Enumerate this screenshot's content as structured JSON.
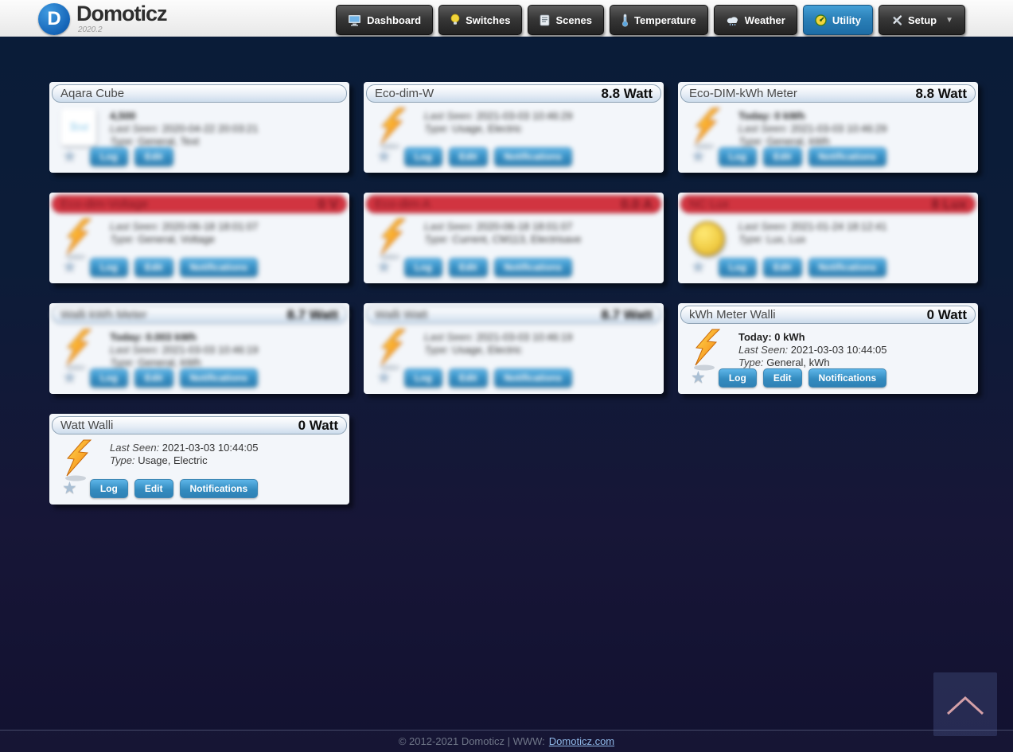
{
  "app": {
    "title": "Domoticz",
    "version": "2020.2"
  },
  "nav": {
    "items": [
      {
        "label": "Dashboard",
        "icon": "dashboard-icon",
        "active": false,
        "dropdown": false
      },
      {
        "label": "Switches",
        "icon": "lightbulb-icon",
        "active": false,
        "dropdown": false
      },
      {
        "label": "Scenes",
        "icon": "scenes-icon",
        "active": false,
        "dropdown": false
      },
      {
        "label": "Temperature",
        "icon": "thermometer-icon",
        "active": false,
        "dropdown": false
      },
      {
        "label": "Weather",
        "icon": "cloud-icon",
        "active": false,
        "dropdown": false
      },
      {
        "label": "Utility",
        "icon": "gauge-icon",
        "active": true,
        "dropdown": false
      },
      {
        "label": "Setup",
        "icon": "tools-icon",
        "active": false,
        "dropdown": true
      }
    ]
  },
  "cards": [
    {
      "title": "Aqara Cube",
      "value": "",
      "status": "normal",
      "icon": "text",
      "blur": "body",
      "today": "4,500",
      "last_seen_label": "Last Seen:",
      "last_seen": "2020-04-22 20:03:21",
      "type_label": "Type:",
      "type": "General, Text",
      "buttons": [
        "Log",
        "Edit"
      ]
    },
    {
      "title": "Eco-dim-W",
      "value": "8.8 Watt",
      "status": "normal",
      "icon": "lightning",
      "blur": "body",
      "today": "",
      "last_seen_label": "Last Seen:",
      "last_seen": "2021-03-03 10:46:29",
      "type_label": "Type:",
      "type": "Usage, Electric",
      "buttons": [
        "Log",
        "Edit",
        "Notifications"
      ]
    },
    {
      "title": "Eco-DIM-kWh Meter",
      "value": "8.8 Watt",
      "status": "normal",
      "icon": "lightning",
      "blur": "body",
      "today": "Today: 0 kWh",
      "last_seen_label": "Last Seen:",
      "last_seen": "2021-03-03 10:46:29",
      "type_label": "Type:",
      "type": "General, kWh",
      "buttons": [
        "Log",
        "Edit",
        "Notifications"
      ]
    },
    {
      "title": "Eco-dim-Voltage",
      "value": "0 V",
      "status": "timeout",
      "icon": "lightning",
      "blur": "full",
      "today": "",
      "last_seen_label": "Last Seen:",
      "last_seen": "2020-06-18 18:01:07",
      "type_label": "Type:",
      "type": "General, Voltage",
      "buttons": [
        "Log",
        "Edit",
        "Notifications"
      ]
    },
    {
      "title": "Eco-dim-A",
      "value": "0.0 A",
      "status": "timeout",
      "icon": "lightning",
      "blur": "full",
      "today": "",
      "last_seen_label": "Last Seen:",
      "last_seen": "2020-06-18 18:01:07",
      "type_label": "Type:",
      "type": "Current, CM113, Electrisave",
      "buttons": [
        "Log",
        "Edit",
        "Notifications"
      ]
    },
    {
      "title": "NC Lux",
      "value": "8 Lux",
      "status": "timeout",
      "icon": "lux",
      "blur": "full",
      "today": "",
      "last_seen_label": "Last Seen:",
      "last_seen": "2021-01-24 18:12:41",
      "type_label": "Type:",
      "type": "Lux, Lux",
      "buttons": [
        "Log",
        "Edit",
        "Notifications"
      ]
    },
    {
      "title": "Walli kWh Meter",
      "value": "8.7 Watt",
      "status": "normal",
      "icon": "lightning",
      "blur": "full",
      "today": "Today: 0.003 kWh",
      "last_seen_label": "Last Seen:",
      "last_seen": "2021-03-03 10:46:19",
      "type_label": "Type:",
      "type": "General, kWh",
      "buttons": [
        "Log",
        "Edit",
        "Notifications"
      ]
    },
    {
      "title": "Walli Watt",
      "value": "8.7 Watt",
      "status": "normal",
      "icon": "lightning",
      "blur": "full",
      "today": "",
      "last_seen_label": "Last Seen:",
      "last_seen": "2021-03-03 10:46:19",
      "type_label": "Type:",
      "type": "Usage, Electric",
      "buttons": [
        "Log",
        "Edit",
        "Notifications"
      ]
    },
    {
      "title": "kWh Meter Walli",
      "value": "0 Watt",
      "status": "normal",
      "icon": "lightning",
      "blur": "none",
      "today": "Today: 0 kWh",
      "last_seen_label": "Last Seen:",
      "last_seen": "2021-03-03 10:44:05",
      "type_label": "Type:",
      "type": "General, kWh",
      "buttons": [
        "Log",
        "Edit",
        "Notifications"
      ]
    },
    {
      "title": "Watt Walli",
      "value": "0 Watt",
      "status": "normal",
      "icon": "lightning",
      "blur": "none",
      "today": "",
      "last_seen_label": "Last Seen:",
      "last_seen": "2021-03-03 10:44:05",
      "type_label": "Type:",
      "type": "Usage, Electric",
      "buttons": [
        "Log",
        "Edit",
        "Notifications"
      ]
    }
  ],
  "footer": {
    "copyright": "© 2012-2021 Domoticz | WWW:",
    "link": "Domoticz.com"
  },
  "colors": {
    "accent_blue": "#2f81b5",
    "active_nav": "#2b80b8",
    "timeout_red": "#d13440",
    "page_bg_top": "#0a1c38",
    "page_bg_bottom": "#121130"
  }
}
